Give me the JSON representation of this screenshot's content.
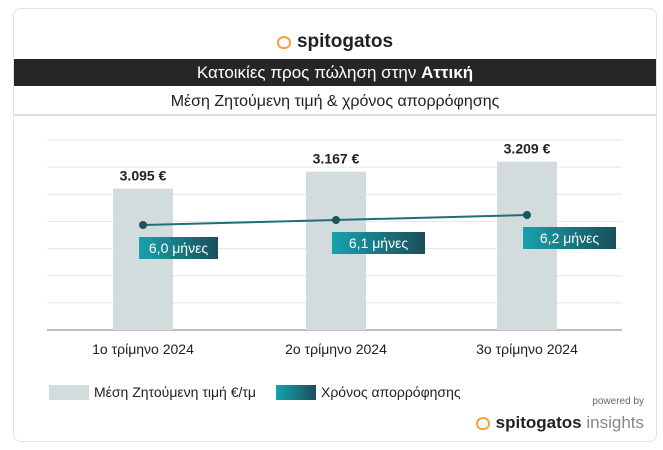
{
  "header": {
    "brand": "spitogatos",
    "title_prefix": "Κατοικίες προς πώληση στην",
    "title_region": "Αττική",
    "subtitle": "Μέση Ζητούμενη τιμή & χρόνος απορρόφησης"
  },
  "footer": {
    "powered_by": "powered by",
    "brand": "spitogatos",
    "brand_suffix": "insights"
  },
  "colors": {
    "bar": "#d3dcdc",
    "line": "#1f6e78",
    "pill_start": "#17a2ad",
    "pill_end": "#1a4f5a"
  },
  "chart_data": {
    "type": "bar+line",
    "categories": [
      "1ο τρίμηνο 2024",
      "2ο τρίμηνο 2024",
      "3ο τρίμηνο 2024"
    ],
    "series": [
      {
        "name": "Μέση Ζητούμενη τιμή €/τμ",
        "type": "bar",
        "values": [
          3095,
          3167,
          3209
        ],
        "labels": [
          "3.095 €",
          "3.167 €",
          "3.209 €"
        ]
      },
      {
        "name": "Χρόνος απορρόφησης",
        "type": "line",
        "values": [
          6.0,
          6.1,
          6.2
        ],
        "labels": [
          "6,0 μήνες",
          "6,1 μήνες",
          "6,2 μήνες"
        ]
      }
    ],
    "ylim": [
      2500,
      3300
    ],
    "y2lim": [
      3.9,
      7.7
    ],
    "grid": true,
    "legend": "bottom-left"
  }
}
